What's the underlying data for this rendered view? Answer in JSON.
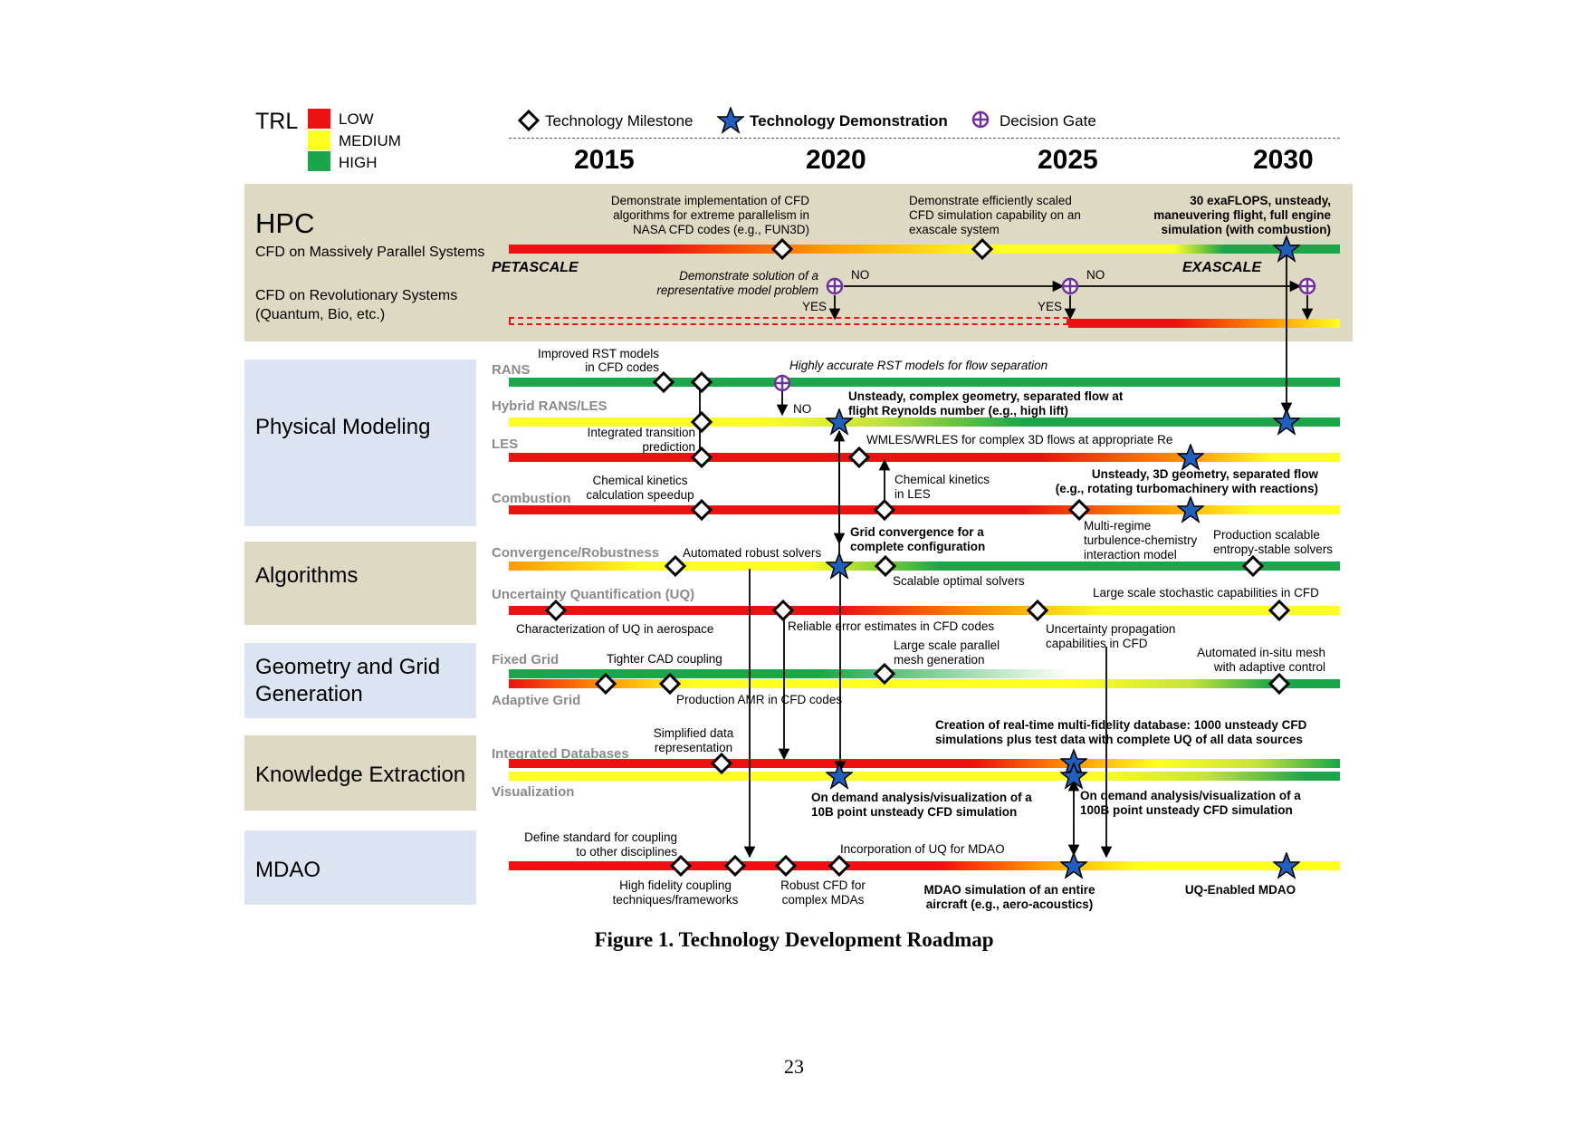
{
  "legend": {
    "trl_title": "TRL",
    "trl_levels": [
      {
        "label": "LOW",
        "color": "#ee1111"
      },
      {
        "label": "MEDIUM",
        "color": "#ffff22"
      },
      {
        "label": "HIGH",
        "color": "#1aa64a"
      }
    ],
    "milestone_label": "Technology Milestone",
    "demo_label": "Technology Demonstration",
    "gate_label": "Decision Gate"
  },
  "years": [
    "2015",
    "2020",
    "2025",
    "2030"
  ],
  "categories": {
    "hpc": {
      "title": "HPC",
      "sub1": "CFD on Massively Parallel Systems",
      "sub2a": "CFD on Revolutionary Systems",
      "sub2b": "(Quantum, Bio, etc.)"
    },
    "physical": "Physical Modeling",
    "algorithms": "Algorithms",
    "geometry_a": "Geometry and Grid",
    "geometry_b": "Generation",
    "knowledge": "Knowledge Extraction",
    "mdao": "MDAO"
  },
  "rows": {
    "rans": "RANS",
    "hybrid": "Hybrid RANS/LES",
    "les": "LES",
    "combustion": "Combustion",
    "convergence": "Convergence/Robustness",
    "uq": "Uncertainty Quantification (UQ)",
    "fixed": "Fixed Grid",
    "adaptive": "Adaptive Grid",
    "integrated": "Integrated Databases",
    "visualization": "Visualization"
  },
  "annotations": {
    "hpc1a": "Demonstrate implementation of CFD",
    "hpc1b": "algorithms for extreme parallelism in",
    "hpc1c": "NASA CFD codes (e.g., FUN3D)",
    "hpc2a": "Demonstrate efficiently scaled",
    "hpc2b": "CFD simulation capability on an",
    "hpc2c": "exascale system",
    "hpc3a": "30 exaFLOPS, unsteady,",
    "hpc3b": "maneuvering flight, full engine",
    "hpc3c": "simulation (with combustion)",
    "petascale": "PETASCALE",
    "exascale": "EXASCALE",
    "hpc4a": "Demonstrate solution of a",
    "hpc4b": "representative model problem",
    "no1": "NO",
    "no2": "NO",
    "yes1": "YES",
    "yes2": "YES",
    "rans1a": "Improved RST models",
    "rans1b": "in CFD codes",
    "rans2": "Highly  accurate RST models for flow separation",
    "no3": "NO",
    "hyb1a": "Unsteady, complex geometry, separated flow at",
    "hyb1b": "flight Reynolds number (e.g., high lift)",
    "les1a": "Integrated transition",
    "les1b": "prediction",
    "les2": "WMLES/WRLES for complex 3D flows at appropriate Re",
    "comb1a": "Chemical kinetics",
    "comb1b": "calculation speedup",
    "comb2a": "Chemical kinetics",
    "comb2b": "in LES",
    "comb3a": "Unsteady, 3D geometry, separated flow",
    "comb3b": "(e.g., rotating turbomachinery with reactions)",
    "conv1": "Automated robust solvers",
    "conv2a": "Grid convergence for a",
    "conv2b": "complete configuration",
    "conv3a": "Multi-regime",
    "conv3b": "turbulence-chemistry",
    "conv3c": "interaction model",
    "conv4a": "Production scalable",
    "conv4b": "entropy-stable solvers",
    "conv5": "Scalable optimal solvers",
    "uq1": "Large scale stochastic capabilities in CFD",
    "uq2": "Characterization of UQ in aerospace",
    "uq3": "Reliable error estimates in CFD codes",
    "uq4a": "Uncertainty propagation",
    "uq4b": "capabilities in CFD",
    "grid1": "Tighter CAD coupling",
    "grid2a": "Large scale parallel",
    "grid2b": "mesh generation",
    "grid3a": "Automated in-situ mesh",
    "grid3b": "with adaptive control",
    "grid4": "Production AMR in CFD codes",
    "ke1a": "Simplified data",
    "ke1b": "representation",
    "ke2a": "Creation of real-time multi-fidelity database: 1000 unsteady CFD",
    "ke2b": "simulations plus test data with complete UQ of all data sources",
    "ke3a": "On demand analysis/visualization of a",
    "ke3b": "10B point unsteady CFD simulation",
    "ke4a": "On demand analysis/visualization of a",
    "ke4b": "100B point unsteady CFD simulation",
    "md1a": "Define standard for coupling",
    "md1b": "to other disciplines",
    "md2": "Incorporation of UQ for MDAO",
    "md3a": "High fidelity coupling",
    "md3b": "techniques/frameworks",
    "md4a": "Robust CFD for",
    "md4b": "complex MDAs",
    "md5a": "MDAO simulation of an entire",
    "md5b": "aircraft (e.g., aero-acoustics)",
    "md6": "UQ-Enabled MDAO"
  },
  "caption": "Figure 1. Technology Development Roadmap",
  "page_number": "23",
  "colors": {
    "red": "#ee1111",
    "yellow": "#ffff22",
    "green": "#1aa64a",
    "orange": "#ff9900",
    "tan_band": "#ddd9c3",
    "blue_band": "#dbe5f1",
    "star": "#1f5fbf",
    "gate": "#7030a0"
  }
}
